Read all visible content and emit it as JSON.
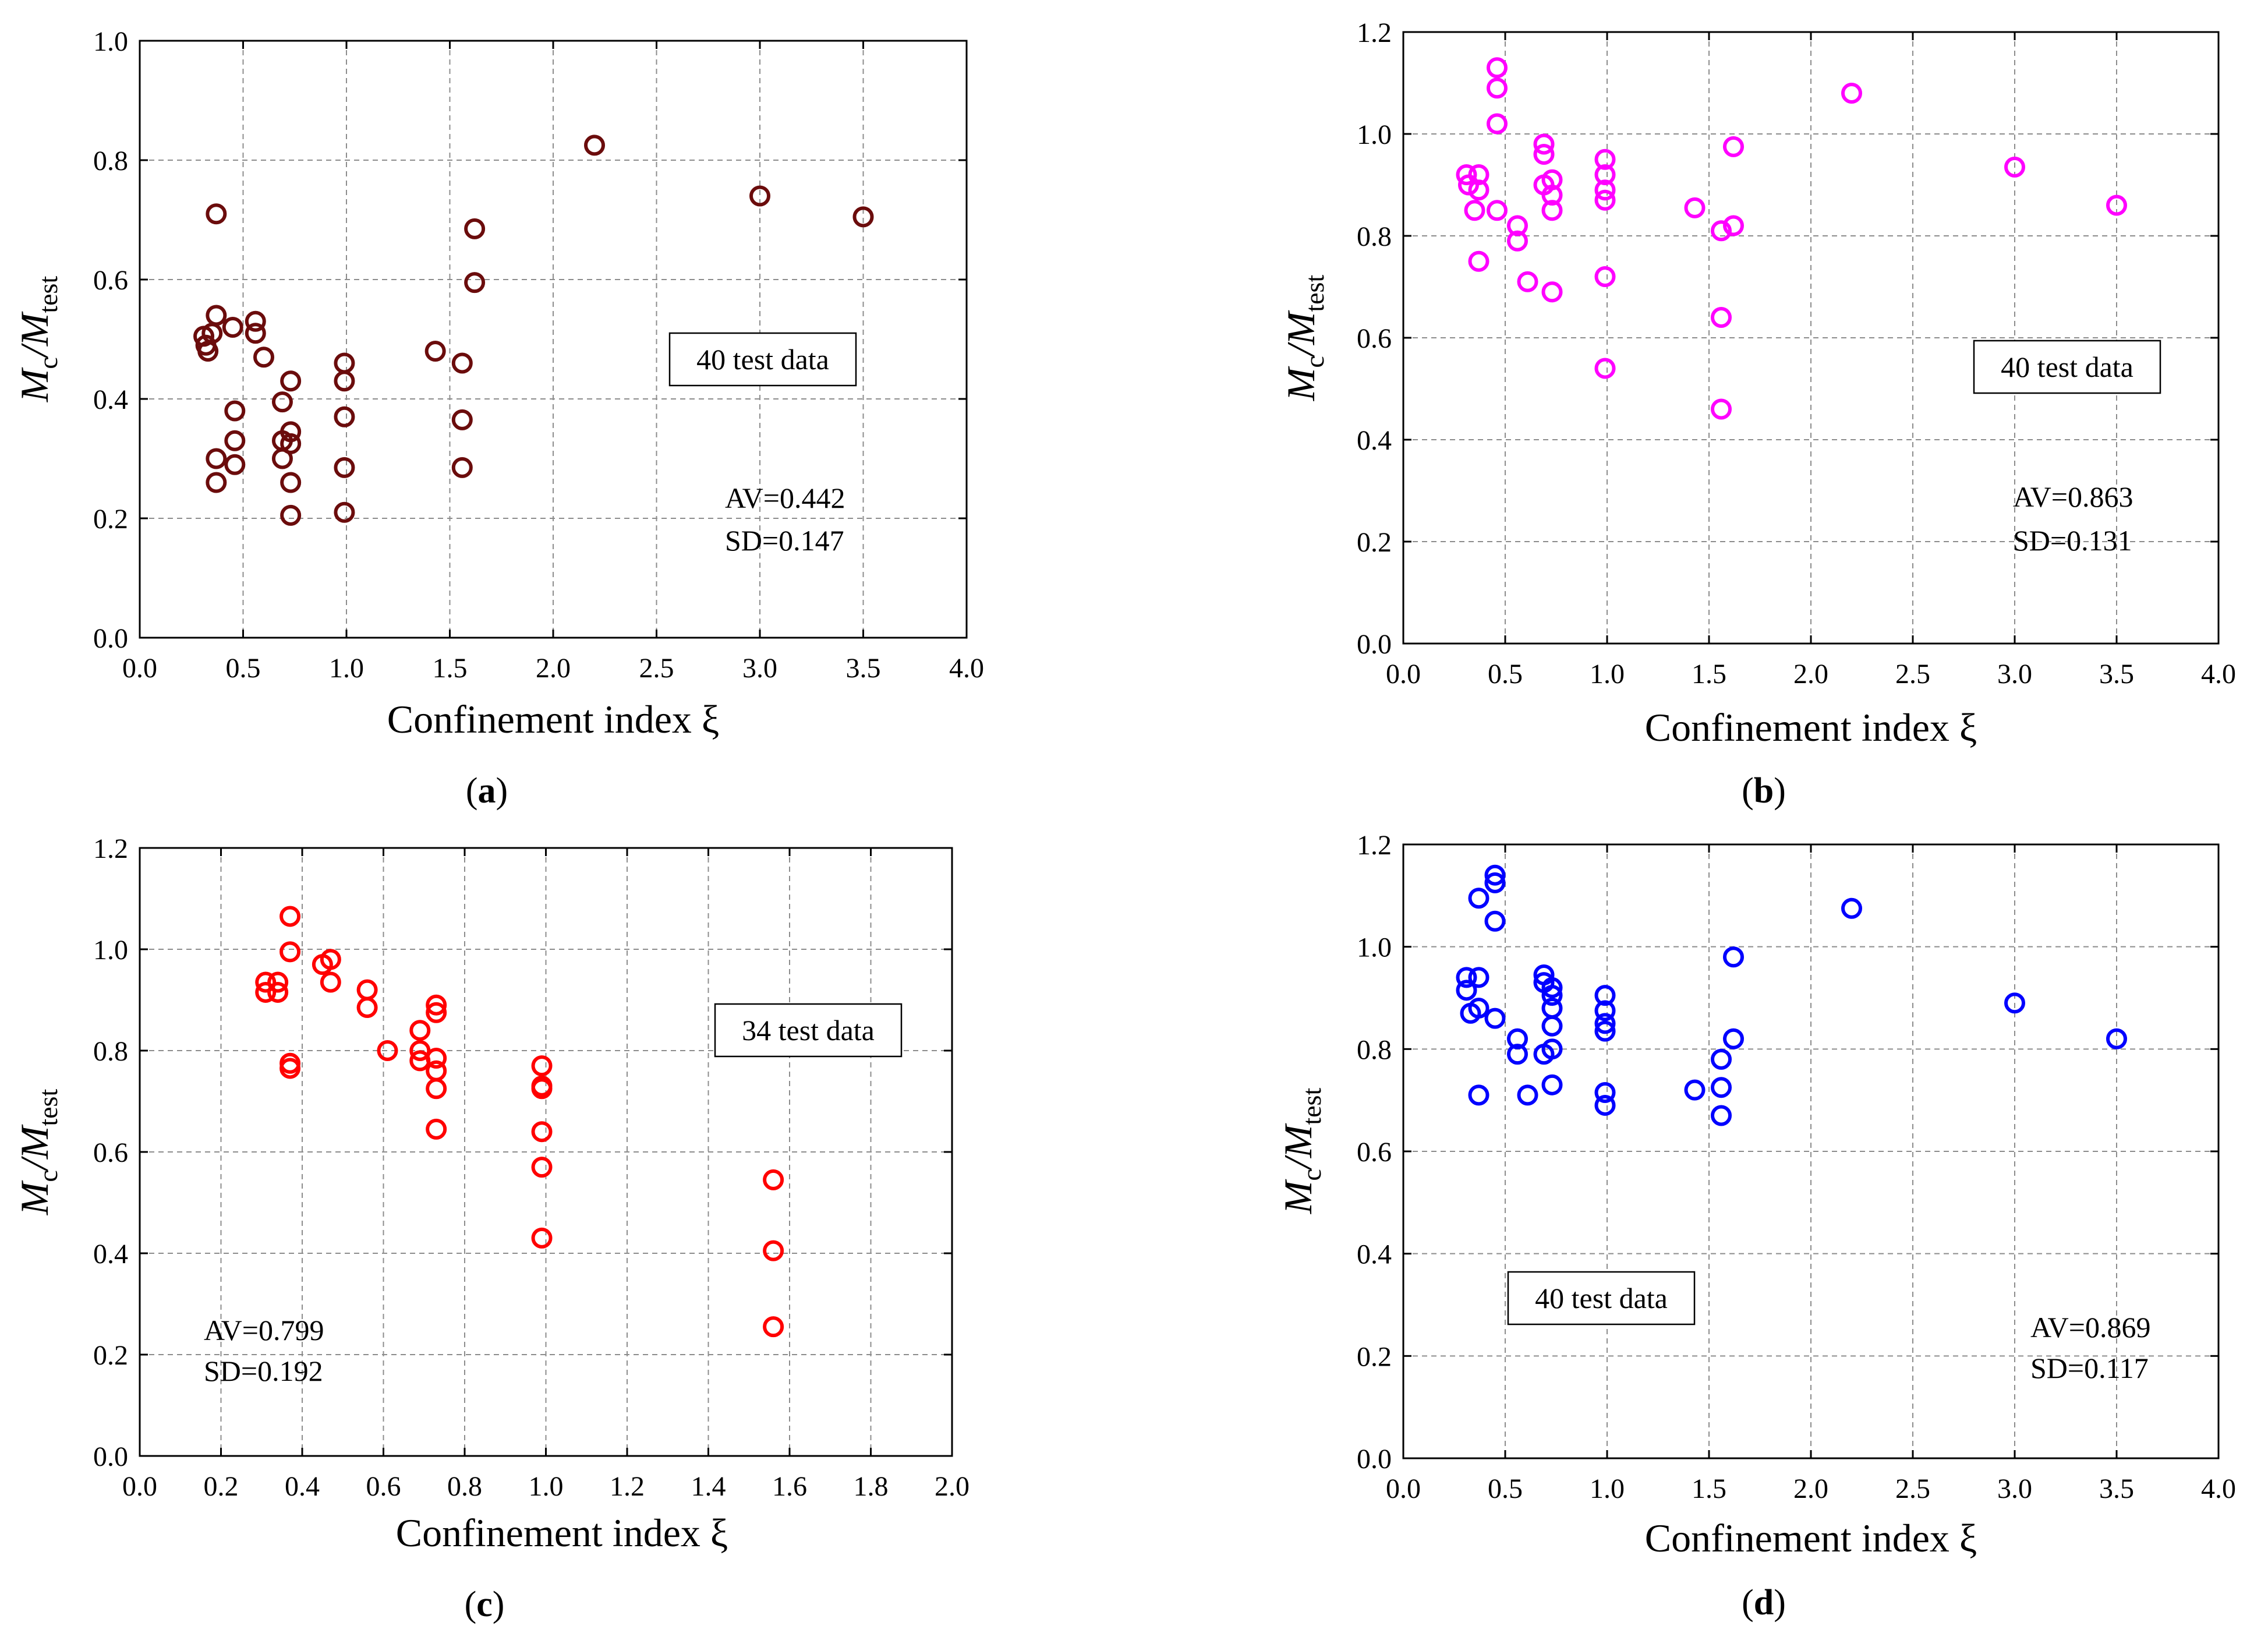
{
  "figure": {
    "captions": [
      {
        "letter": "a"
      },
      {
        "letter": "b"
      },
      {
        "letter": "c"
      },
      {
        "letter": "d"
      }
    ]
  },
  "chart_data": [
    {
      "id": "a",
      "type": "scatter",
      "caption": "(a)",
      "xlabel": "Confinement index ξ",
      "ylabel_main": "M",
      "ylabel_sub1": "c",
      "ylabel_sep": "/M",
      "ylabel_sub2": "test",
      "xlim": [
        0.0,
        4.0
      ],
      "ylim": [
        0.0,
        1.0
      ],
      "xticks": [
        0.0,
        0.5,
        1.0,
        1.5,
        2.0,
        2.5,
        3.0,
        3.5,
        4.0
      ],
      "xtick_labels": [
        "0.0",
        "0.5",
        "1.0",
        "1.5",
        "2.0",
        "2.5",
        "3.0",
        "3.5",
        "4.0"
      ],
      "yticks": [
        0.0,
        0.2,
        0.4,
        0.6,
        0.8,
        1.0
      ],
      "ytick_labels": [
        "0.0",
        "0.2",
        "0.4",
        "0.6",
        "0.8",
        "1.0"
      ],
      "marker": "open-circle",
      "color": "#6b0c0c",
      "box_label": "40 test data",
      "box_position": "middle-right",
      "av": "AV=0.442",
      "sd": "SD=0.147",
      "stats_position": "lower-right",
      "points": [
        [
          0.31,
          0.505
        ],
        [
          0.32,
          0.49
        ],
        [
          0.33,
          0.48
        ],
        [
          0.35,
          0.51
        ],
        [
          0.37,
          0.54
        ],
        [
          0.37,
          0.71
        ],
        [
          0.37,
          0.3
        ],
        [
          0.37,
          0.26
        ],
        [
          0.45,
          0.52
        ],
        [
          0.46,
          0.38
        ],
        [
          0.46,
          0.33
        ],
        [
          0.46,
          0.29
        ],
        [
          0.56,
          0.53
        ],
        [
          0.56,
          0.51
        ],
        [
          0.6,
          0.47
        ],
        [
          0.69,
          0.395
        ],
        [
          0.69,
          0.33
        ],
        [
          0.69,
          0.3
        ],
        [
          0.73,
          0.43
        ],
        [
          0.73,
          0.345
        ],
        [
          0.73,
          0.325
        ],
        [
          0.73,
          0.26
        ],
        [
          0.73,
          0.205
        ],
        [
          0.99,
          0.46
        ],
        [
          0.99,
          0.43
        ],
        [
          0.99,
          0.37
        ],
        [
          0.99,
          0.285
        ],
        [
          0.99,
          0.21
        ],
        [
          1.43,
          0.48
        ],
        [
          1.56,
          0.46
        ],
        [
          1.56,
          0.365
        ],
        [
          1.56,
          0.285
        ],
        [
          1.62,
          0.685
        ],
        [
          1.62,
          0.595
        ],
        [
          2.2,
          0.825
        ],
        [
          3.0,
          0.74
        ],
        [
          3.5,
          0.705
        ]
      ]
    },
    {
      "id": "b",
      "type": "scatter",
      "caption": "(b)",
      "xlabel": "Confinement index ξ",
      "ylabel_main": "M",
      "ylabel_sub1": "c",
      "ylabel_sep": "/M",
      "ylabel_sub2": "test",
      "xlim": [
        0.0,
        4.0
      ],
      "ylim": [
        0.0,
        1.2
      ],
      "xticks": [
        0.0,
        0.5,
        1.0,
        1.5,
        2.0,
        2.5,
        3.0,
        3.5,
        4.0
      ],
      "xtick_labels": [
        "0.0",
        "0.5",
        "1.0",
        "1.5",
        "2.0",
        "2.5",
        "3.0",
        "3.5",
        "4.0"
      ],
      "yticks": [
        0.0,
        0.2,
        0.4,
        0.6,
        0.8,
        1.0,
        1.2
      ],
      "ytick_labels": [
        "0.0",
        "0.2",
        "0.4",
        "0.6",
        "0.8",
        "1.0",
        "1.2"
      ],
      "marker": "open-circle",
      "color": "#ff00ff",
      "box_label": "40 test data",
      "box_position": "middle-right",
      "av": "AV=0.863",
      "sd": "SD=0.131",
      "stats_position": "lower-right",
      "points": [
        [
          0.31,
          0.92
        ],
        [
          0.32,
          0.9
        ],
        [
          0.35,
          0.85
        ],
        [
          0.37,
          0.92
        ],
        [
          0.37,
          0.89
        ],
        [
          0.37,
          0.75
        ],
        [
          0.46,
          1.13
        ],
        [
          0.46,
          1.09
        ],
        [
          0.46,
          1.02
        ],
        [
          0.46,
          0.85
        ],
        [
          0.56,
          0.82
        ],
        [
          0.56,
          0.79
        ],
        [
          0.61,
          0.71
        ],
        [
          0.69,
          0.98
        ],
        [
          0.69,
          0.96
        ],
        [
          0.69,
          0.9
        ],
        [
          0.73,
          0.91
        ],
        [
          0.73,
          0.88
        ],
        [
          0.73,
          0.85
        ],
        [
          0.73,
          0.69
        ],
        [
          0.99,
          0.95
        ],
        [
          0.99,
          0.92
        ],
        [
          0.99,
          0.89
        ],
        [
          0.99,
          0.87
        ],
        [
          0.99,
          0.72
        ],
        [
          0.99,
          0.54
        ],
        [
          1.43,
          0.855
        ],
        [
          1.56,
          0.81
        ],
        [
          1.56,
          0.64
        ],
        [
          1.56,
          0.46
        ],
        [
          1.62,
          0.975
        ],
        [
          1.62,
          0.82
        ],
        [
          2.2,
          1.08
        ],
        [
          3.0,
          0.935
        ],
        [
          3.5,
          0.86
        ]
      ]
    },
    {
      "id": "c",
      "type": "scatter",
      "caption": "(c)",
      "xlabel": "Confinement index ξ",
      "ylabel_main": "M",
      "ylabel_sub1": "c",
      "ylabel_sep": "/M",
      "ylabel_sub2": "test",
      "xlim": [
        0.0,
        2.0
      ],
      "ylim": [
        0.0,
        1.2
      ],
      "xticks": [
        0.0,
        0.2,
        0.4,
        0.6,
        0.8,
        1.0,
        1.2,
        1.4,
        1.6,
        1.8,
        2.0
      ],
      "xtick_labels": [
        "0.0",
        "0.2",
        "0.4",
        "0.6",
        "0.8",
        "1.0",
        "1.2",
        "1.4",
        "1.6",
        "1.8",
        "2.0"
      ],
      "yticks": [
        0.0,
        0.2,
        0.4,
        0.6,
        0.8,
        1.0,
        1.2
      ],
      "ytick_labels": [
        "0.0",
        "0.2",
        "0.4",
        "0.6",
        "0.8",
        "1.0",
        "1.2"
      ],
      "marker": "open-circle",
      "color": "#ff0000",
      "box_label": "34 test data",
      "box_position": "upper-right",
      "av": "AV=0.799",
      "sd": "SD=0.192",
      "stats_position": "lower-left",
      "points": [
        [
          0.31,
          0.935
        ],
        [
          0.31,
          0.915
        ],
        [
          0.34,
          0.935
        ],
        [
          0.34,
          0.915
        ],
        [
          0.37,
          1.065
        ],
        [
          0.37,
          0.995
        ],
        [
          0.37,
          0.775
        ],
        [
          0.37,
          0.765
        ],
        [
          0.45,
          0.97
        ],
        [
          0.47,
          0.98
        ],
        [
          0.47,
          0.935
        ],
        [
          0.56,
          0.92
        ],
        [
          0.56,
          0.885
        ],
        [
          0.61,
          0.8
        ],
        [
          0.69,
          0.84
        ],
        [
          0.69,
          0.8
        ],
        [
          0.69,
          0.78
        ],
        [
          0.73,
          0.89
        ],
        [
          0.73,
          0.875
        ],
        [
          0.73,
          0.785
        ],
        [
          0.73,
          0.76
        ],
        [
          0.73,
          0.725
        ],
        [
          0.73,
          0.645
        ],
        [
          0.99,
          0.77
        ],
        [
          0.99,
          0.73
        ],
        [
          0.99,
          0.725
        ],
        [
          0.99,
          0.64
        ],
        [
          0.99,
          0.57
        ],
        [
          0.99,
          0.43
        ],
        [
          1.56,
          0.545
        ],
        [
          1.56,
          0.405
        ],
        [
          1.56,
          0.255
        ]
      ]
    },
    {
      "id": "d",
      "type": "scatter",
      "caption": "(d)",
      "xlabel": "Confinement index ξ",
      "ylabel_main": "M",
      "ylabel_sub1": "c",
      "ylabel_sep": "/M",
      "ylabel_sub2": "test",
      "xlim": [
        0.0,
        4.0
      ],
      "ylim": [
        0.0,
        1.2
      ],
      "xticks": [
        0.0,
        0.5,
        1.0,
        1.5,
        2.0,
        2.5,
        3.0,
        3.5,
        4.0
      ],
      "xtick_labels": [
        "0.0",
        "0.5",
        "1.0",
        "1.5",
        "2.0",
        "2.5",
        "3.0",
        "3.5",
        "4.0"
      ],
      "yticks": [
        0.0,
        0.2,
        0.4,
        0.6,
        0.8,
        1.0,
        1.2
      ],
      "ytick_labels": [
        "0.0",
        "0.2",
        "0.4",
        "0.6",
        "0.8",
        "1.0",
        "1.2"
      ],
      "marker": "open-circle",
      "color": "#0000ff",
      "box_label": "40 test data",
      "box_position": "lower-left",
      "av": "AV=0.869",
      "sd": "SD=0.117",
      "stats_position": "lower-right",
      "points": [
        [
          0.31,
          0.94
        ],
        [
          0.31,
          0.915
        ],
        [
          0.33,
          0.87
        ],
        [
          0.37,
          1.095
        ],
        [
          0.37,
          0.94
        ],
        [
          0.37,
          0.88
        ],
        [
          0.37,
          0.71
        ],
        [
          0.45,
          1.14
        ],
        [
          0.45,
          1.125
        ],
        [
          0.45,
          1.05
        ],
        [
          0.45,
          0.86
        ],
        [
          0.56,
          0.82
        ],
        [
          0.56,
          0.79
        ],
        [
          0.61,
          0.71
        ],
        [
          0.69,
          0.945
        ],
        [
          0.69,
          0.93
        ],
        [
          0.69,
          0.79
        ],
        [
          0.73,
          0.92
        ],
        [
          0.73,
          0.905
        ],
        [
          0.73,
          0.88
        ],
        [
          0.73,
          0.845
        ],
        [
          0.73,
          0.8
        ],
        [
          0.73,
          0.73
        ],
        [
          0.99,
          0.905
        ],
        [
          0.99,
          0.875
        ],
        [
          0.99,
          0.85
        ],
        [
          0.99,
          0.835
        ],
        [
          0.99,
          0.715
        ],
        [
          0.99,
          0.69
        ],
        [
          1.43,
          0.72
        ],
        [
          1.56,
          0.78
        ],
        [
          1.56,
          0.725
        ],
        [
          1.56,
          0.67
        ],
        [
          1.62,
          0.98
        ],
        [
          1.62,
          0.82
        ],
        [
          2.2,
          1.075
        ],
        [
          3.0,
          0.89
        ],
        [
          3.5,
          0.82
        ]
      ]
    }
  ]
}
